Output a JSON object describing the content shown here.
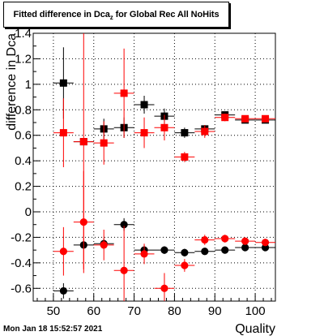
{
  "title": {
    "prefix": "Fitted difference in Dca",
    "subscript": "z",
    "suffix": " for Global Rec All NoHits"
  },
  "footer": {
    "date": "Mon Jan 18 15:52:57 2021"
  },
  "colors": {
    "series_black": "#000000",
    "series_red": "#ff0000",
    "grid": "#000000"
  },
  "chart_data": {
    "type": "scatter",
    "title": "Fitted difference in Dcaz for Global Rec All NoHits",
    "xlabel": "Quality",
    "ylabel": "difference in Dca",
    "xlim": [
      45,
      105
    ],
    "ylim": [
      -0.7,
      1.4
    ],
    "grid": true,
    "x_ticks": [
      50,
      60,
      70,
      80,
      90,
      100
    ],
    "y_ticks": [
      -0.6,
      -0.4,
      -0.2,
      0,
      0.2,
      0.4,
      0.6,
      0.8,
      1,
      1.2,
      1.4
    ],
    "series": [
      {
        "color": "#000000",
        "marker": "square",
        "x": [
          52.5,
          57.5,
          62.5,
          67.5,
          72.5,
          77.5,
          82.5,
          87.5,
          92.5,
          97.5,
          102.5
        ],
        "y": [
          1.01,
          0.55,
          0.65,
          0.66,
          0.84,
          0.75,
          0.62,
          0.65,
          0.76,
          0.72,
          0.72
        ],
        "err": [
          0.28,
          0.0,
          0.08,
          0.08,
          0.07,
          0.06,
          0.04,
          0.03,
          0.02,
          0.02,
          0.02
        ],
        "xerr": 2.5
      },
      {
        "color": "#ff0000",
        "marker": "square",
        "x": [
          52.5,
          57.5,
          62.5,
          67.5,
          72.5,
          77.5,
          82.5,
          87.5,
          92.5,
          97.5,
          102.5
        ],
        "y": [
          0.62,
          0.55,
          0.54,
          0.93,
          0.62,
          0.66,
          0.43,
          0.63,
          0.74,
          0.73,
          0.73
        ],
        "err": [
          0.27,
          1.0,
          0.17,
          0.35,
          0.12,
          0.1,
          0.04,
          0.05,
          0.03,
          0.02,
          0.02
        ],
        "xerr": 2.5
      },
      {
        "color": "#000000",
        "marker": "circle",
        "x": [
          52.5,
          57.5,
          62.5,
          67.5,
          72.5,
          77.5,
          82.5,
          87.5,
          92.5,
          97.5,
          102.5
        ],
        "y": [
          -0.62,
          -0.26,
          -0.25,
          -0.1,
          -0.3,
          -0.3,
          -0.32,
          -0.31,
          -0.3,
          -0.28,
          -0.28
        ],
        "err": [
          0.06,
          0.0,
          0.04,
          0.05,
          0.04,
          0.03,
          0.03,
          0.02,
          0.02,
          0.02,
          0.02
        ],
        "xerr": 2.5
      },
      {
        "color": "#ff0000",
        "marker": "circle",
        "x": [
          52.5,
          57.5,
          62.5,
          67.5,
          72.5,
          77.5,
          82.5,
          87.5,
          92.5,
          97.5,
          102.5
        ],
        "y": [
          -0.31,
          -0.08,
          -0.26,
          -0.46,
          -0.33,
          -0.6,
          -0.42,
          -0.22,
          -0.21,
          -0.23,
          -0.24
        ],
        "err": [
          0.19,
          0.4,
          0.12,
          0.35,
          0.08,
          0.12,
          0.05,
          0.04,
          0.03,
          0.02,
          0.02
        ],
        "xerr": 2.5
      }
    ]
  }
}
